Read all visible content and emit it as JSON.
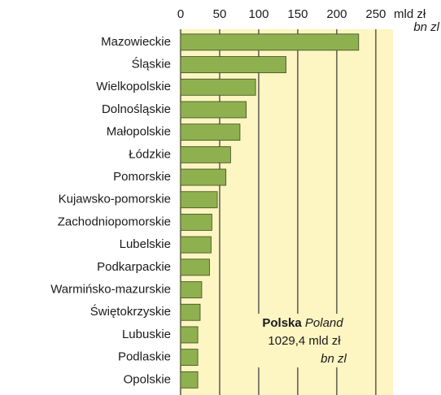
{
  "chart_data": {
    "type": "barh",
    "categories": [
      "Mazowieckie",
      "Śląskie",
      "Wielkopolskie",
      "Dolnośląskie",
      "Małopolskie",
      "Łódzkie",
      "Pomorskie",
      "Kujawsko-pomorskie",
      "Zachodniopomorskie",
      "Lubelskie",
      "Podkarpackie",
      "Warmińsko-mazurskie",
      "Świętokrzyskie",
      "Lubuskie",
      "Podlaskie",
      "Opolskie"
    ],
    "values": [
      228,
      135,
      96,
      84,
      76,
      64,
      58,
      47,
      40,
      39,
      37,
      27,
      25,
      22,
      22,
      22
    ],
    "color": "#8fb04f",
    "background": "#fdf5c2",
    "xlim": [
      0,
      272
    ],
    "xticks": [
      0,
      50,
      100,
      150,
      200,
      250
    ],
    "grid": true,
    "unit_label": "mld zł",
    "unit_label_en": "bn zl",
    "annotation": {
      "name": "Polska",
      "name_en": "Poland",
      "total": "1029,4 mld zł",
      "unit_en": "bn zl"
    }
  }
}
